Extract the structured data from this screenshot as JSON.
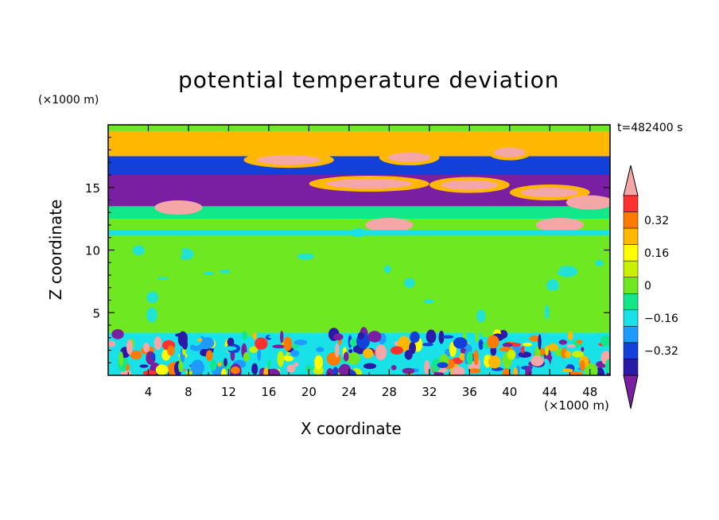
{
  "chart_data": {
    "type": "heatmap",
    "title": "potential temperature deviation",
    "xlabel": "X coordinate",
    "ylabel": "Z coordinate",
    "x_unit": "(×1000 m)",
    "z_unit": "(×1000 m)",
    "time_label": "t=482400 s",
    "xlim": [
      0,
      50
    ],
    "ylim": [
      0,
      20
    ],
    "x_ticks": [
      "4",
      "8",
      "12",
      "16",
      "20",
      "24",
      "28",
      "32",
      "36",
      "40",
      "44",
      "48"
    ],
    "y_ticks": [
      "5",
      "10",
      "15"
    ],
    "colorbar": {
      "levels": [
        -0.48,
        -0.4,
        -0.32,
        -0.24,
        -0.16,
        -0.08,
        0,
        0.08,
        0.16,
        0.24,
        0.32,
        0.4,
        0.48
      ],
      "tick_labels": [
        "0.32",
        "0.16",
        "0",
        "−0.16",
        "−0.32"
      ],
      "colors": [
        "#7a1fa2",
        "#2b1aa6",
        "#1240d8",
        "#1e9bff",
        "#19e1e8",
        "#12e88a",
        "#6ee820",
        "#c8f000",
        "#ffff00",
        "#ffb800",
        "#ff7a00",
        "#ff3030",
        "#f5a6a6"
      ],
      "extend": "both"
    },
    "bands": [
      {
        "z": [
          0.0,
          3.4
        ],
        "description": "turbulent mixed layer: mixed negative and positive deviations"
      },
      {
        "z": [
          3.4,
          12.5
        ],
        "value": 0.0
      },
      {
        "z": [
          12.5,
          13.5
        ],
        "value": -0.08
      },
      {
        "z": [
          13.5,
          16.0
        ],
        "value": -0.48
      },
      {
        "z": [
          16.0,
          17.5
        ],
        "value": -0.32
      },
      {
        "z": [
          17.5,
          19.5
        ],
        "value": 0.24
      },
      {
        "z": [
          19.5,
          20.0
        ],
        "value": 0.0
      }
    ]
  }
}
